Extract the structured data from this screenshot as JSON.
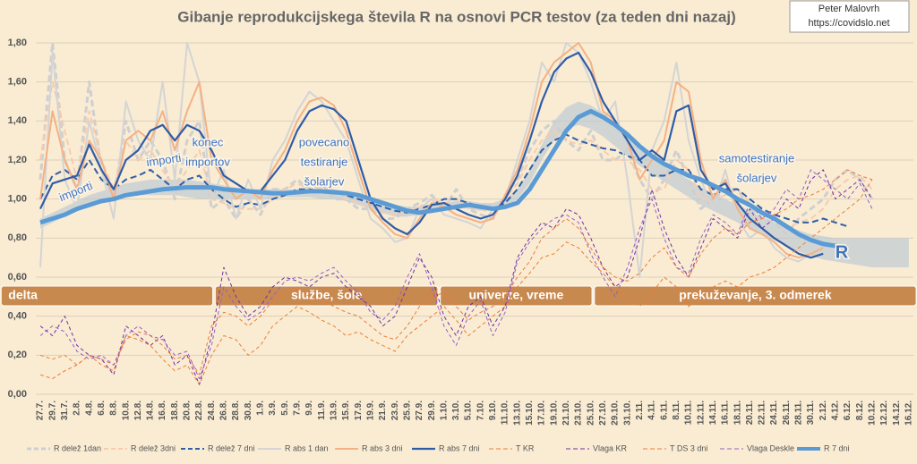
{
  "chart_data": {
    "type": "line",
    "title": "Gibanje reprodukcijskega števila R na osnovi PCR testov (za teden dni nazaj)",
    "credit": [
      "Peter Malovrh",
      "https://covidslo.net"
    ],
    "categories": [
      "27.7.",
      "29.7.",
      "31.7.",
      "2.8.",
      "4.8.",
      "6.8.",
      "8.8.",
      "10.8.",
      "12.8.",
      "14.8.",
      "16.8.",
      "18.8.",
      "20.8.",
      "22.8.",
      "24.8.",
      "26.8.",
      "28.8.",
      "30.8.",
      "1.9.",
      "3.9.",
      "5.9.",
      "7.9.",
      "9.9.",
      "11.9.",
      "13.9.",
      "15.9.",
      "17.9.",
      "19.9.",
      "21.9.",
      "23.9.",
      "25.9.",
      "27.9.",
      "29.9.",
      "1.10.",
      "3.10.",
      "5.10.",
      "7.10.",
      "9.10.",
      "11.10.",
      "13.10.",
      "15.10.",
      "17.10.",
      "19.10.",
      "21.10.",
      "23.10.",
      "25.10.",
      "27.10.",
      "29.10.",
      "31.10.",
      "2.11.",
      "4.11.",
      "6.11.",
      "8.11.",
      "10.11.",
      "12.11.",
      "14.11.",
      "16.11.",
      "18.11.",
      "20.11.",
      "22.11.",
      "24.11.",
      "26.11.",
      "28.11.",
      "30.11.",
      "2.12.",
      "4.12.",
      "6.12.",
      "8.12.",
      "10.12.",
      "12.12.",
      "14.12.",
      "16.12."
    ],
    "ylim": [
      0,
      1.8
    ],
    "yticks": [
      {
        "value": 0,
        "label": "0,00"
      },
      {
        "value": 0.2,
        "label": "0,20"
      },
      {
        "value": 0.4,
        "label": "0,40"
      },
      {
        "value": 0.6,
        "label": "0,60"
      },
      {
        "value": 0.8,
        "label": "0,80"
      },
      {
        "value": 1,
        "label": "1,00"
      },
      {
        "value": 1.2,
        "label": "1,20"
      },
      {
        "value": 1.4,
        "label": "1,40"
      },
      {
        "value": 1.6,
        "label": "1,60"
      },
      {
        "value": 1.8,
        "label": "1,80"
      }
    ],
    "grid": true,
    "band": {
      "color": "#b4c6d6",
      "upper": [
        0.9,
        0.93,
        0.96,
        0.99,
        1.02,
        1.04,
        1.06,
        1.08,
        1.09,
        1.1,
        1.1,
        1.1,
        1.1,
        1.09,
        1.08,
        1.07,
        1.06,
        1.05,
        1.05,
        1.05,
        1.05,
        1.05,
        1.05,
        1.05,
        1.05,
        1.04,
        1.03,
        1.01,
        0.99,
        0.97,
        0.96,
        0.96,
        0.97,
        0.98,
        0.99,
        0.99,
        0.98,
        0.98,
        1.0,
        1.05,
        1.15,
        1.28,
        1.4,
        1.47,
        1.5,
        1.48,
        1.44,
        1.38,
        1.32,
        1.26,
        1.22,
        1.18,
        1.14,
        1.1,
        1.06,
        1.03,
        1.0,
        0.97,
        0.94,
        0.91,
        0.88,
        0.86,
        0.84,
        0.82,
        0.81,
        0.8,
        0.8,
        0.8,
        0.8,
        0.8,
        0.8,
        0.8
      ],
      "lower": [
        0.85,
        0.88,
        0.91,
        0.94,
        0.97,
        0.99,
        1.01,
        1.02,
        1.02,
        1.02,
        1.02,
        1.02,
        1.01,
        1.0,
        1.0,
        1.0,
        1.0,
        1.0,
        1.0,
        1.0,
        1.01,
        1.01,
        1.01,
        1.0,
        1.0,
        0.99,
        0.97,
        0.95,
        0.93,
        0.91,
        0.91,
        0.92,
        0.93,
        0.95,
        0.96,
        0.95,
        0.94,
        0.94,
        0.96,
        1.0,
        1.08,
        1.2,
        1.3,
        1.36,
        1.38,
        1.36,
        1.32,
        1.27,
        1.22,
        1.17,
        1.13,
        1.09,
        1.05,
        1.01,
        0.97,
        0.94,
        0.91,
        0.88,
        0.85,
        0.82,
        0.79,
        0.76,
        0.73,
        0.71,
        0.69,
        0.68,
        0.67,
        0.66,
        0.65,
        0.65,
        0.65,
        0.65
      ]
    },
    "series": [
      {
        "name": "R delež 1dan",
        "color": "#cfcfcf",
        "dashed": true,
        "width": 3,
        "values": [
          1.1,
          1.8,
          1.2,
          1.05,
          1.6,
          1.15,
          1.0,
          1.4,
          1.2,
          1.3,
          1.2,
          1.0,
          1.3,
          1.4,
          0.95,
          1.0,
          0.9,
          1.0,
          0.92,
          1.05,
          1.05,
          1.1,
          1.05,
          1.08,
          1.0,
          1.0,
          0.95,
          0.95,
          0.9,
          0.9,
          0.95,
          0.98,
          1.02,
          0.95,
          1.05,
          0.95,
          0.92,
          0.9,
          1.02,
          1.1,
          1.25,
          1.35,
          1.4,
          1.3,
          1.25,
          1.35,
          1.2,
          1.2,
          1.25,
          1.1,
          1.0,
          1.1,
          1.25,
          1.1,
          0.95,
          1.0,
          1.05,
          1.05,
          0.95,
          0.9,
          0.88,
          0.82,
          0.9,
          0.95,
          1.0,
          1.1,
          1.15,
          1.1,
          1.0,
          null,
          null,
          null
        ]
      },
      {
        "name": "R delež 3dni",
        "color": "#f8cbad",
        "dashed": true,
        "width": 2,
        "values": [
          1.2,
          1.6,
          1.35,
          1.1,
          1.45,
          1.2,
          1.05,
          1.3,
          1.2,
          1.25,
          1.15,
          1.05,
          1.15,
          1.25,
          1.0,
          0.98,
          0.95,
          0.95,
          0.95,
          1.0,
          1.05,
          1.08,
          1.05,
          1.06,
          1.05,
          1.0,
          0.98,
          0.95,
          0.93,
          0.92,
          0.94,
          0.96,
          1.0,
          0.98,
          1.0,
          0.96,
          0.95,
          0.92,
          1.0,
          1.08,
          1.2,
          1.3,
          1.35,
          1.3,
          1.28,
          1.3,
          1.25,
          1.2,
          1.2,
          1.15,
          1.05,
          1.05,
          1.2,
          1.15,
          1.0,
          1.0,
          1.02,
          1.05,
          0.98,
          0.92,
          0.9,
          0.85,
          0.88,
          0.9,
          0.95,
          1.05,
          1.1,
          1.12,
          1.05,
          null,
          null,
          null
        ]
      },
      {
        "name": "R delež 7 dni",
        "color": "#2e5fa8",
        "dashed": true,
        "width": 2,
        "values": [
          1.0,
          1.12,
          1.15,
          1.1,
          1.2,
          1.1,
          1.05,
          1.1,
          1.12,
          1.15,
          1.1,
          1.05,
          1.1,
          1.12,
          1.05,
          1.0,
          0.96,
          0.98,
          0.97,
          1.0,
          1.02,
          1.05,
          1.05,
          1.04,
          1.04,
          1.02,
          1.0,
          0.98,
          0.96,
          0.94,
          0.93,
          0.95,
          0.97,
          1.0,
          1.0,
          0.98,
          0.96,
          0.95,
          0.98,
          1.05,
          1.15,
          1.25,
          1.3,
          1.33,
          1.3,
          1.28,
          1.26,
          1.25,
          1.22,
          1.2,
          1.12,
          1.12,
          1.15,
          1.15,
          1.05,
          1.02,
          1.05,
          1.05,
          1.0,
          0.95,
          0.92,
          0.9,
          0.88,
          0.88,
          0.9,
          0.88,
          0.86,
          null,
          null,
          null,
          null,
          null
        ]
      },
      {
        "name": "R abs 1 dan",
        "color": "#d4d4d4",
        "dashed": false,
        "width": 2,
        "values": [
          0.65,
          1.75,
          1.1,
          0.95,
          1.4,
          1.15,
          0.9,
          1.5,
          1.3,
          1.2,
          1.6,
          1.1,
          1.8,
          1.6,
          1.0,
          1.15,
          0.9,
          1.1,
          0.95,
          1.2,
          1.3,
          1.45,
          1.55,
          1.5,
          1.4,
          1.3,
          1.1,
          0.9,
          0.85,
          0.78,
          0.8,
          0.95,
          1.0,
          0.92,
          0.9,
          0.88,
          0.85,
          0.95,
          1.0,
          1.2,
          1.4,
          1.7,
          1.6,
          1.8,
          1.75,
          1.6,
          1.4,
          1.5,
          1.1,
          0.6,
          1.25,
          1.4,
          1.7,
          1.3,
          1.1,
          0.95,
          1.15,
          0.9,
          0.8,
          0.85,
          0.75,
          0.7,
          0.68,
          0.72,
          0.8,
          null,
          null,
          null,
          null,
          null,
          null,
          null
        ]
      },
      {
        "name": "R abs 3 dni",
        "color": "#f4b183",
        "dashed": false,
        "width": 2,
        "values": [
          1.0,
          1.45,
          1.2,
          1.05,
          1.3,
          1.2,
          1.0,
          1.3,
          1.35,
          1.3,
          1.45,
          1.25,
          1.45,
          1.6,
          1.2,
          1.1,
          1.0,
          1.05,
          1.0,
          1.15,
          1.25,
          1.4,
          1.5,
          1.52,
          1.48,
          1.35,
          1.15,
          0.95,
          0.88,
          0.82,
          0.8,
          0.9,
          0.98,
          0.96,
          0.92,
          0.9,
          0.88,
          0.9,
          1.02,
          1.15,
          1.35,
          1.6,
          1.7,
          1.75,
          1.8,
          1.7,
          1.45,
          1.4,
          1.3,
          1.1,
          1.2,
          1.3,
          1.6,
          1.55,
          1.2,
          1.0,
          1.1,
          0.95,
          0.85,
          0.82,
          0.78,
          0.72,
          0.7,
          0.72,
          0.75,
          null,
          null,
          null,
          null,
          null,
          null,
          null
        ]
      },
      {
        "name": "R abs 7 dni",
        "color": "#2f5ca8",
        "dashed": false,
        "width": 2.2,
        "values": [
          0.95,
          1.08,
          1.1,
          1.12,
          1.28,
          1.15,
          1.05,
          1.2,
          1.25,
          1.35,
          1.38,
          1.3,
          1.38,
          1.35,
          1.25,
          1.12,
          1.08,
          1.04,
          1.04,
          1.12,
          1.2,
          1.35,
          1.45,
          1.48,
          1.46,
          1.4,
          1.2,
          1.0,
          0.9,
          0.85,
          0.82,
          0.88,
          0.97,
          0.98,
          0.95,
          0.92,
          0.9,
          0.92,
          1.0,
          1.12,
          1.3,
          1.5,
          1.65,
          1.72,
          1.75,
          1.65,
          1.5,
          1.4,
          1.3,
          1.2,
          1.25,
          1.2,
          1.45,
          1.48,
          1.15,
          1.05,
          1.08,
          0.98,
          0.9,
          0.85,
          0.8,
          0.76,
          0.72,
          0.7,
          0.72,
          null,
          null,
          null,
          null,
          null,
          null,
          null
        ]
      },
      {
        "name": "T KR",
        "color": "#ed7d31",
        "dashed": true,
        "width": 1,
        "values": [
          0.2,
          0.18,
          0.2,
          0.15,
          0.2,
          0.15,
          0.12,
          0.3,
          0.28,
          0.25,
          0.18,
          0.12,
          0.15,
          0.05,
          0.2,
          0.3,
          0.28,
          0.2,
          0.25,
          0.35,
          0.4,
          0.45,
          0.42,
          0.38,
          0.35,
          0.3,
          0.32,
          0.28,
          0.25,
          0.22,
          0.3,
          0.35,
          0.4,
          0.45,
          0.38,
          0.3,
          0.35,
          0.4,
          0.45,
          0.55,
          0.62,
          0.7,
          0.72,
          0.78,
          0.75,
          0.68,
          0.62,
          0.55,
          0.5,
          0.45,
          0.52,
          0.6,
          0.55,
          0.45,
          0.5,
          0.55,
          0.58,
          0.55,
          0.6,
          0.62,
          0.65,
          0.7,
          0.75,
          0.8,
          0.85,
          0.9,
          0.95,
          1.0,
          1.1,
          null,
          null,
          null
        ]
      },
      {
        "name": "Vlaga KR",
        "color": "#7030a0",
        "dashed": true,
        "width": 1,
        "values": [
          0.35,
          0.3,
          0.4,
          0.25,
          0.2,
          0.18,
          0.1,
          0.35,
          0.3,
          0.25,
          0.3,
          0.15,
          0.2,
          0.05,
          0.3,
          0.65,
          0.5,
          0.4,
          0.45,
          0.55,
          0.6,
          0.58,
          0.55,
          0.6,
          0.62,
          0.55,
          0.5,
          0.45,
          0.35,
          0.4,
          0.55,
          0.7,
          0.6,
          0.4,
          0.3,
          0.45,
          0.5,
          0.35,
          0.45,
          0.7,
          0.8,
          0.88,
          0.85,
          0.95,
          0.92,
          0.8,
          0.65,
          0.55,
          0.6,
          0.8,
          1.05,
          0.85,
          0.7,
          0.6,
          0.75,
          0.9,
          0.85,
          0.8,
          0.95,
          0.85,
          0.9,
          1.0,
          0.95,
          1.1,
          1.15,
          1.0,
          1.05,
          1.1,
          1.0,
          null,
          null,
          null
        ]
      },
      {
        "name": "T DS 3 dni",
        "color": "#f07838",
        "dashed": true,
        "width": 1,
        "values": [
          0.1,
          0.08,
          0.12,
          0.15,
          0.2,
          0.18,
          0.15,
          0.28,
          0.32,
          0.3,
          0.25,
          0.18,
          0.2,
          0.1,
          0.35,
          0.42,
          0.4,
          0.35,
          0.4,
          0.48,
          0.52,
          0.55,
          0.5,
          0.48,
          0.45,
          0.42,
          0.4,
          0.35,
          0.3,
          0.28,
          0.35,
          0.45,
          0.5,
          0.52,
          0.45,
          0.38,
          0.42,
          0.45,
          0.5,
          0.6,
          0.68,
          0.8,
          0.85,
          0.9,
          0.85,
          0.75,
          0.65,
          0.6,
          0.58,
          0.62,
          0.7,
          0.75,
          0.65,
          0.6,
          0.72,
          0.8,
          0.85,
          0.82,
          0.88,
          0.9,
          0.92,
          0.95,
          1.0,
          1.02,
          1.05,
          1.1,
          1.15,
          1.12,
          1.1,
          null,
          null,
          null
        ]
      },
      {
        "name": "Vlaga Deskle",
        "color": "#9460c8",
        "dashed": true,
        "width": 1,
        "values": [
          0.3,
          0.35,
          0.32,
          0.22,
          0.18,
          0.2,
          0.15,
          0.3,
          0.35,
          0.3,
          0.28,
          0.2,
          0.22,
          0.08,
          0.25,
          0.55,
          0.45,
          0.38,
          0.42,
          0.5,
          0.58,
          0.6,
          0.58,
          0.62,
          0.65,
          0.58,
          0.52,
          0.42,
          0.38,
          0.45,
          0.6,
          0.72,
          0.55,
          0.35,
          0.25,
          0.4,
          0.48,
          0.3,
          0.42,
          0.68,
          0.78,
          0.85,
          0.9,
          0.92,
          0.88,
          0.72,
          0.6,
          0.5,
          0.65,
          0.85,
          1.0,
          0.8,
          0.65,
          0.62,
          0.8,
          0.92,
          0.88,
          0.82,
          0.98,
          0.9,
          0.95,
          1.05,
          1.0,
          1.15,
          1.1,
          1.05,
          1.0,
          1.08,
          0.95,
          null,
          null,
          null
        ]
      },
      {
        "name": "R 7 dni",
        "color": "#5b9bd5",
        "dashed": false,
        "width": 5,
        "values": [
          0.88,
          0.9,
          0.92,
          0.95,
          0.97,
          0.99,
          1.0,
          1.02,
          1.03,
          1.04,
          1.05,
          1.055,
          1.06,
          1.06,
          1.06,
          1.05,
          1.045,
          1.04,
          1.035,
          1.03,
          1.03,
          1.035,
          1.04,
          1.04,
          1.035,
          1.03,
          1.02,
          1.0,
          0.98,
          0.96,
          0.94,
          0.93,
          0.94,
          0.95,
          0.96,
          0.97,
          0.96,
          0.95,
          0.96,
          0.98,
          1.05,
          1.15,
          1.25,
          1.35,
          1.42,
          1.45,
          1.42,
          1.38,
          1.33,
          1.27,
          1.22,
          1.18,
          1.15,
          1.12,
          1.1,
          1.07,
          1.04,
          1.0,
          0.97,
          0.93,
          0.9,
          0.86,
          0.82,
          0.79,
          0.77,
          0.76,
          0.75,
          null,
          null,
          null,
          null,
          null
        ]
      }
    ],
    "annotations": [
      [
        "importi"
      ],
      [
        "importi"
      ],
      [
        "konec",
        "importov"
      ],
      [
        "povecano",
        "testiranje",
        "šolarjev"
      ],
      [
        "samotestiranje",
        "šolarjev"
      ],
      [
        "R"
      ]
    ],
    "phases": [
      "delta",
      "službe, šole",
      "univerze, vreme",
      "prekuževanje, 3. odmerek"
    ]
  }
}
